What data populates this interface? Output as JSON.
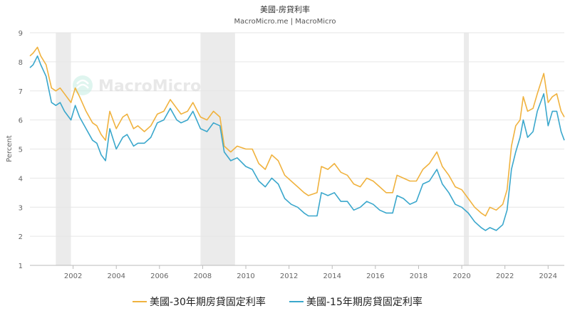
{
  "chart_data": {
    "type": "line",
    "title": "美國-房貸利率",
    "subtitle": "MacroMicro.me | MacroMicro",
    "watermark": "MacroMicro",
    "ylabel": "Percent",
    "xlabel": "",
    "xlim": [
      2000.0,
      2024.75
    ],
    "ylim": [
      1,
      9
    ],
    "y_ticks": [
      1,
      2,
      3,
      4,
      5,
      6,
      7,
      8,
      9
    ],
    "x_ticks": [
      2002,
      2004,
      2006,
      2008,
      2010,
      2012,
      2014,
      2016,
      2018,
      2020,
      2022,
      2024
    ],
    "grid": true,
    "legend_position": "bottom",
    "recession_bands": [
      [
        2001.2,
        2001.9
      ],
      [
        2007.9,
        2009.5
      ],
      [
        2020.1,
        2020.33
      ]
    ],
    "recession_color": "#ebebeb",
    "series": [
      {
        "name": "美國-30年期房貸固定利率",
        "color": "#f0b23e",
        "x": [
          2000.0,
          2000.15,
          2000.35,
          2000.5,
          2000.75,
          2001.0,
          2001.2,
          2001.4,
          2001.6,
          2001.9,
          2002.1,
          2002.3,
          2002.6,
          2002.9,
          2003.1,
          2003.3,
          2003.5,
          2003.7,
          2004.0,
          2004.3,
          2004.5,
          2004.8,
          2005.0,
          2005.3,
          2005.6,
          2005.9,
          2006.2,
          2006.5,
          2006.8,
          2007.0,
          2007.3,
          2007.55,
          2007.9,
          2008.2,
          2008.5,
          2008.8,
          2009.0,
          2009.3,
          2009.6,
          2010.0,
          2010.3,
          2010.6,
          2010.9,
          2011.2,
          2011.5,
          2011.8,
          2012.1,
          2012.4,
          2012.7,
          2012.9,
          2013.3,
          2013.5,
          2013.8,
          2014.1,
          2014.4,
          2014.7,
          2015.0,
          2015.3,
          2015.6,
          2015.9,
          2016.2,
          2016.5,
          2016.8,
          2017.0,
          2017.3,
          2017.6,
          2017.9,
          2018.2,
          2018.5,
          2018.85,
          2019.1,
          2019.4,
          2019.7,
          2020.0,
          2020.3,
          2020.6,
          2020.9,
          2021.1,
          2021.3,
          2021.6,
          2021.9,
          2022.1,
          2022.3,
          2022.5,
          2022.7,
          2022.85,
          2023.05,
          2023.3,
          2023.5,
          2023.8,
          2024.0,
          2024.2,
          2024.4,
          2024.6,
          2024.75
        ],
        "values": [
          8.2,
          8.3,
          8.5,
          8.2,
          7.9,
          7.1,
          7.0,
          7.1,
          6.9,
          6.6,
          7.1,
          6.8,
          6.3,
          5.9,
          5.8,
          5.5,
          5.3,
          6.3,
          5.7,
          6.1,
          6.2,
          5.7,
          5.8,
          5.6,
          5.8,
          6.2,
          6.3,
          6.7,
          6.4,
          6.2,
          6.3,
          6.6,
          6.1,
          6.0,
          6.3,
          6.1,
          5.1,
          4.9,
          5.1,
          5.0,
          5.0,
          4.5,
          4.3,
          4.8,
          4.6,
          4.1,
          3.9,
          3.7,
          3.5,
          3.4,
          3.5,
          4.4,
          4.3,
          4.5,
          4.2,
          4.1,
          3.8,
          3.7,
          4.0,
          3.9,
          3.7,
          3.5,
          3.5,
          4.1,
          4.0,
          3.9,
          3.9,
          4.3,
          4.5,
          4.9,
          4.4,
          4.1,
          3.7,
          3.6,
          3.3,
          3.0,
          2.8,
          2.7,
          3.0,
          2.9,
          3.1,
          3.6,
          5.1,
          5.8,
          6.0,
          6.8,
          6.3,
          6.4,
          6.9,
          7.6,
          6.6,
          6.8,
          6.9,
          6.3,
          6.1
        ]
      },
      {
        "name": "美國-15年期房貸固定利率",
        "color": "#3aa7cc",
        "x": [
          2000.0,
          2000.15,
          2000.35,
          2000.5,
          2000.75,
          2001.0,
          2001.2,
          2001.4,
          2001.6,
          2001.9,
          2002.1,
          2002.3,
          2002.6,
          2002.9,
          2003.1,
          2003.3,
          2003.5,
          2003.7,
          2004.0,
          2004.3,
          2004.5,
          2004.8,
          2005.0,
          2005.3,
          2005.6,
          2005.9,
          2006.2,
          2006.5,
          2006.8,
          2007.0,
          2007.3,
          2007.55,
          2007.9,
          2008.2,
          2008.5,
          2008.8,
          2009.0,
          2009.3,
          2009.6,
          2010.0,
          2010.3,
          2010.6,
          2010.9,
          2011.2,
          2011.5,
          2011.8,
          2012.1,
          2012.4,
          2012.7,
          2012.9,
          2013.3,
          2013.5,
          2013.8,
          2014.1,
          2014.4,
          2014.7,
          2015.0,
          2015.3,
          2015.6,
          2015.9,
          2016.2,
          2016.5,
          2016.8,
          2017.0,
          2017.3,
          2017.6,
          2017.9,
          2018.2,
          2018.5,
          2018.85,
          2019.1,
          2019.4,
          2019.7,
          2020.0,
          2020.3,
          2020.6,
          2020.9,
          2021.1,
          2021.3,
          2021.6,
          2021.9,
          2022.1,
          2022.3,
          2022.5,
          2022.7,
          2022.85,
          2023.05,
          2023.3,
          2023.5,
          2023.8,
          2024.0,
          2024.2,
          2024.4,
          2024.6,
          2024.75
        ],
        "values": [
          7.8,
          7.9,
          8.2,
          7.9,
          7.5,
          6.6,
          6.5,
          6.6,
          6.3,
          6.0,
          6.5,
          6.1,
          5.7,
          5.3,
          5.2,
          4.8,
          4.6,
          5.7,
          5.0,
          5.4,
          5.5,
          5.1,
          5.2,
          5.2,
          5.4,
          5.9,
          6.0,
          6.4,
          6.0,
          5.9,
          6.0,
          6.3,
          5.7,
          5.6,
          5.9,
          5.8,
          4.9,
          4.6,
          4.7,
          4.4,
          4.3,
          3.9,
          3.7,
          4.0,
          3.8,
          3.3,
          3.1,
          3.0,
          2.8,
          2.7,
          2.7,
          3.5,
          3.4,
          3.5,
          3.2,
          3.2,
          2.9,
          3.0,
          3.2,
          3.1,
          2.9,
          2.8,
          2.8,
          3.4,
          3.3,
          3.1,
          3.2,
          3.8,
          3.9,
          4.3,
          3.8,
          3.5,
          3.1,
          3.0,
          2.8,
          2.5,
          2.3,
          2.2,
          2.3,
          2.2,
          2.4,
          2.9,
          4.3,
          4.9,
          5.4,
          6.0,
          5.4,
          5.6,
          6.3,
          6.9,
          5.8,
          6.3,
          6.3,
          5.6,
          5.3
        ]
      }
    ]
  }
}
